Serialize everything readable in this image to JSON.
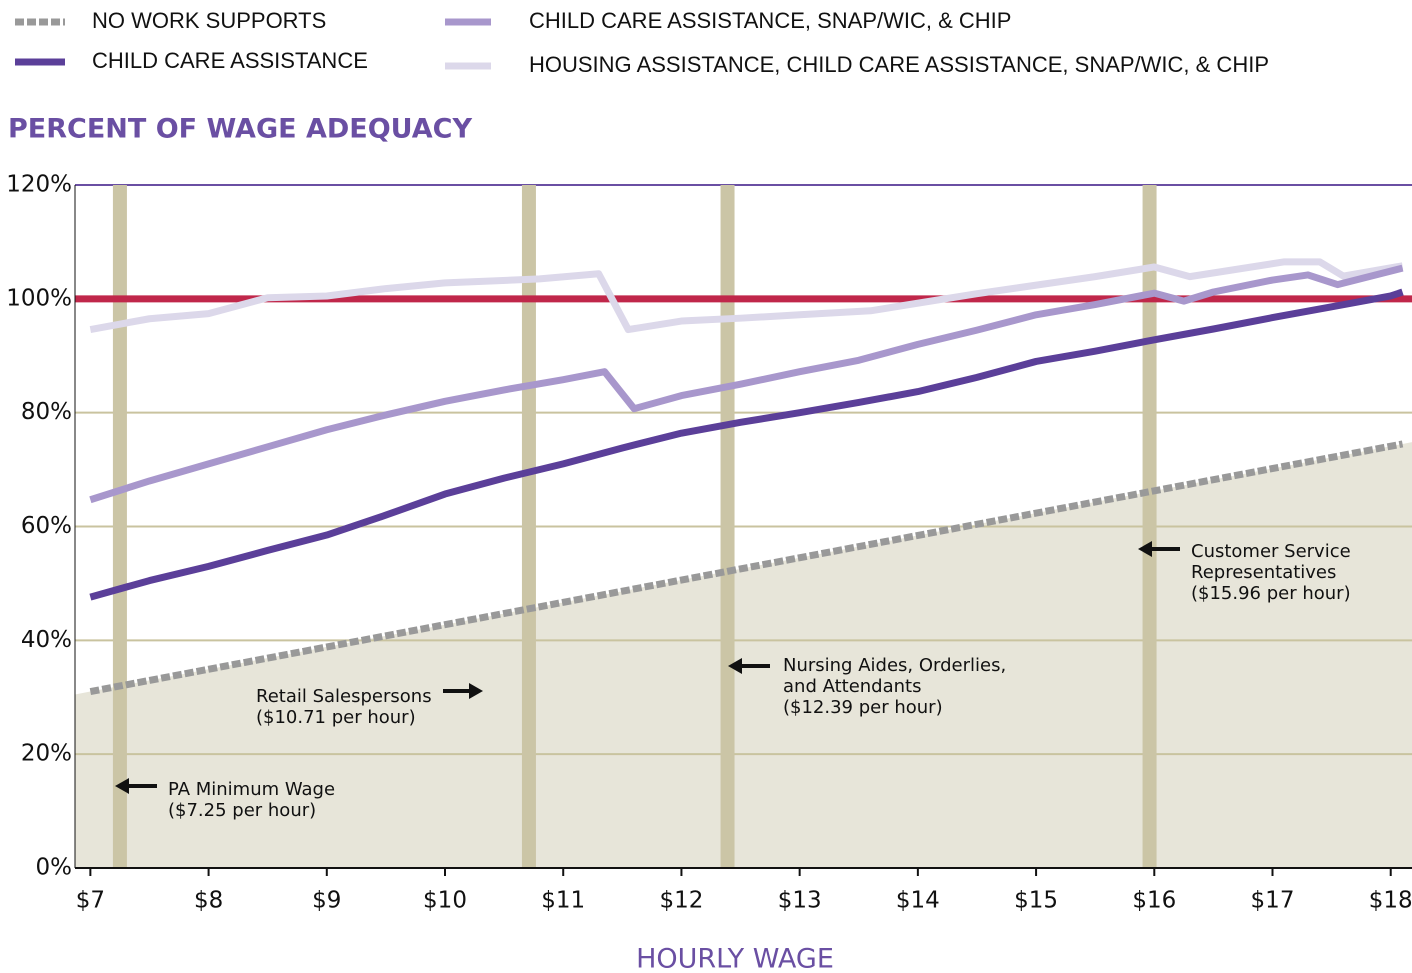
{
  "chart_data": {
    "type": "line",
    "y_axis_label": "PERCENT OF WAGE ADEQUACY",
    "x_axis_label": "HOURLY WAGE",
    "xlim": [
      6.87,
      18.18
    ],
    "ylim": [
      0,
      120
    ],
    "xticks": [
      {
        "value": 7,
        "label": "$7"
      },
      {
        "value": 8,
        "label": "$8"
      },
      {
        "value": 9,
        "label": "$9"
      },
      {
        "value": 10,
        "label": "$10"
      },
      {
        "value": 11,
        "label": "$11"
      },
      {
        "value": 12,
        "label": "$12"
      },
      {
        "value": 13,
        "label": "$13"
      },
      {
        "value": 14,
        "label": "$14"
      },
      {
        "value": 15,
        "label": "$15"
      },
      {
        "value": 16,
        "label": "$16"
      },
      {
        "value": 17,
        "label": "$17"
      },
      {
        "value": 18,
        "label": "$18"
      }
    ],
    "yticks": [
      {
        "value": 0,
        "label": "0%"
      },
      {
        "value": 20,
        "label": "20%"
      },
      {
        "value": 40,
        "label": "40%"
      },
      {
        "value": 60,
        "label": "60%"
      },
      {
        "value": 80,
        "label": "80%"
      },
      {
        "value": 100,
        "label": "100%"
      },
      {
        "value": 120,
        "label": "120%"
      }
    ],
    "grid": true,
    "reference_line": {
      "value": 100,
      "color": "#c0274a"
    },
    "wage_markers": [
      7.25,
      10.71,
      12.39,
      15.96
    ],
    "marker_color": "#cbc5a6",
    "series": [
      {
        "name": "NO WORK SUPPORTS",
        "color": "#999999",
        "dashed": true,
        "area_color": "#e7e5d9",
        "x": [
          7,
          18.1
        ],
        "values": [
          31,
          74.5
        ]
      },
      {
        "name": "CHILD CARE ASSISTANCE",
        "color": "#5b3f99",
        "x": [
          7,
          7.5,
          8,
          8.5,
          9,
          9.5,
          10,
          10.5,
          11,
          11.5,
          12,
          12.5,
          13,
          13.5,
          14,
          14.5,
          15,
          15.5,
          16,
          16.5,
          17,
          17.5,
          18,
          18.1
        ],
        "values": [
          47.6,
          50.5,
          53,
          55.8,
          58.5,
          62,
          65.7,
          68.5,
          71,
          73.8,
          76.4,
          78.3,
          80,
          81.8,
          83.7,
          86.2,
          89,
          90.8,
          92.8,
          94.7,
          96.7,
          98.6,
          100.5,
          101.2
        ]
      },
      {
        "name": "CHILD CARE ASSISTANCE, SNAP/WIC, & CHIP",
        "color": "#a897cc",
        "x": [
          7,
          7.5,
          8,
          8.5,
          9,
          9.5,
          10,
          10.5,
          11,
          11.35,
          11.6,
          12,
          12.5,
          13,
          13.5,
          14,
          14.5,
          15,
          15.5,
          16,
          16.25,
          16.5,
          17,
          17.3,
          17.55,
          18.1
        ],
        "values": [
          64.7,
          68,
          71,
          74,
          77,
          79.6,
          82,
          84,
          85.8,
          87.2,
          80.7,
          83,
          85,
          87.2,
          89.2,
          92,
          94.5,
          97.2,
          99,
          101,
          99.6,
          101.2,
          103.3,
          104.2,
          102.5,
          105.4
        ]
      },
      {
        "name": "HOUSING ASSISTANCE, CHILD CARE ASSISTANCE, SNAP/WIC, & CHIP",
        "color": "#dcd8ea",
        "x": [
          7,
          7.5,
          8,
          8.5,
          9,
          9.5,
          10,
          10.8,
          11.3,
          11.55,
          12,
          12.5,
          13,
          13.6,
          14.5,
          15.5,
          16,
          16.3,
          17.1,
          17.4,
          17.6,
          18.1
        ],
        "values": [
          94.6,
          96.5,
          97.4,
          100.2,
          100.5,
          101.8,
          102.8,
          103.5,
          104.4,
          94.6,
          96.1,
          96.6,
          97.2,
          97.9,
          100.9,
          103.9,
          105.6,
          103.9,
          106.5,
          106.5,
          104,
          105.8
        ]
      }
    ],
    "annotations": [
      {
        "text": [
          "PA  Minimum Wage",
          "($7.25 per hour)"
        ]
      },
      {
        "text": [
          "Retail Salespersons",
          "($10.71 per hour)"
        ]
      },
      {
        "text": [
          "Nursing Aides, Orderlies,",
          "and Attendants",
          "($12.39 per hour)"
        ]
      },
      {
        "text": [
          "Customer Service",
          "Representatives",
          "($15.96 per hour)"
        ]
      }
    ]
  }
}
